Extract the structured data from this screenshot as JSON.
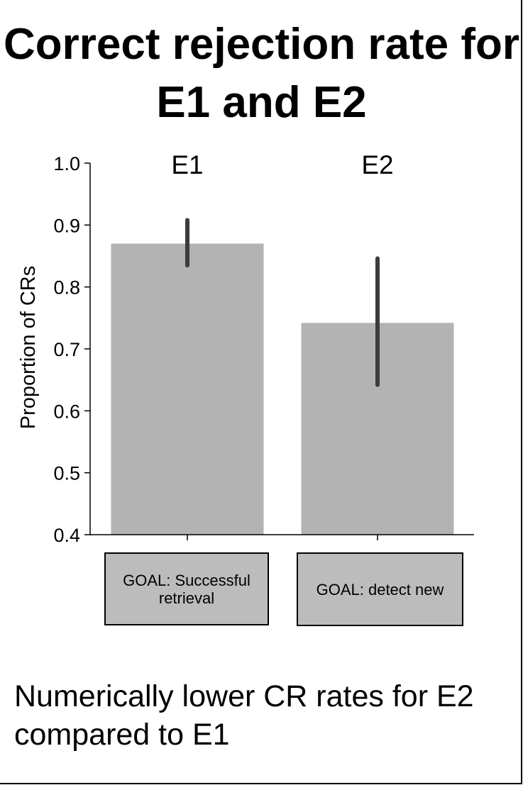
{
  "title": "Correct rejection rate for E1 and E2",
  "caption": "Numerically lower CR rates for E2 compared to E1",
  "colors": {
    "bar": "#b3b3b3",
    "error_bar": "#3c3c3c",
    "goal_box": "#bcbcbc"
  },
  "chart_data": {
    "type": "bar",
    "categories": [
      "E1",
      "E2"
    ],
    "category_labels": [
      "GOAL: Successful retrieval",
      "GOAL: detect new"
    ],
    "values": [
      0.87,
      0.742
    ],
    "error_low": [
      0.835,
      0.642
    ],
    "error_high": [
      0.908,
      0.846
    ],
    "ylabel": "Proportion of CRs",
    "xlabel": "",
    "ylim": [
      0.4,
      1.0
    ],
    "yticks": [
      "0.4",
      "0.5",
      "0.6",
      "0.7",
      "0.8",
      "0.9",
      "1.0"
    ],
    "grid": false
  }
}
